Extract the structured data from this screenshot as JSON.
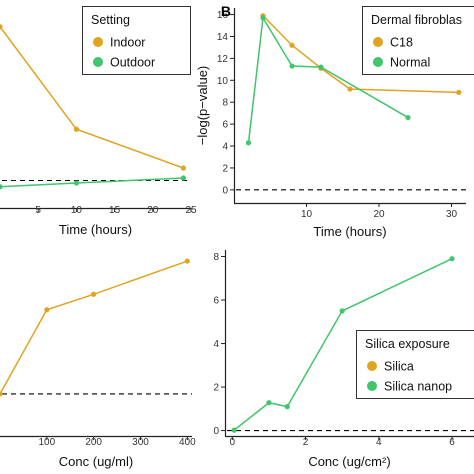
{
  "colors": {
    "orange": "#E0A420",
    "green": "#3FC56B",
    "axis": "#222222",
    "dashed": "#000000"
  },
  "chart_data": [
    {
      "id": "A",
      "type": "line",
      "panel_label": "",
      "title": "",
      "xlabel": "Time (hours)",
      "ylabel": "",
      "xlim": [
        0,
        25
      ],
      "ylim": [
        0,
        16
      ],
      "xticks": [
        5,
        10,
        15,
        20,
        25
      ],
      "xtick_labels": [
        "5",
        "10",
        "15",
        "20",
        "25"
      ],
      "yticks": [],
      "reference_y": 2.2,
      "legend": {
        "title": "Setting",
        "position": "top-right"
      },
      "series": [
        {
          "name": "Indoor",
          "color": "#E0A420",
          "x": [
            0,
            10,
            24
          ],
          "y": [
            14.5,
            6.3,
            3.2
          ]
        },
        {
          "name": "Outdoor",
          "color": "#3FC56B",
          "x": [
            0,
            10,
            24
          ],
          "y": [
            1.7,
            2.0,
            2.4
          ]
        }
      ]
    },
    {
      "id": "B",
      "type": "line",
      "panel_label": "B",
      "title": "",
      "xlabel": "Time (hours)",
      "ylabel": "−log(p−value)",
      "xlim": [
        0,
        32
      ],
      "ylim": [
        -1.2,
        16.6
      ],
      "xticks": [
        10,
        20,
        30
      ],
      "xtick_labels": [
        "10",
        "20",
        "30"
      ],
      "yticks": [
        0,
        2,
        4,
        6,
        8,
        10,
        12,
        14,
        16
      ],
      "ytick_labels": [
        "0",
        "2",
        "4",
        "6",
        "8",
        "10",
        "12",
        "14",
        "16"
      ],
      "reference_y": 0,
      "legend": {
        "title": "Dermal fibroblas",
        "position": "top-right"
      },
      "series": [
        {
          "name": "C18",
          "color": "#E0A420",
          "x": [
            4,
            8,
            12,
            16,
            31
          ],
          "y": [
            15.9,
            13.2,
            11.1,
            9.2,
            8.9
          ]
        },
        {
          "name": "Normal",
          "color": "#3FC56B",
          "x": [
            2,
            4,
            8,
            12,
            24
          ],
          "y": [
            4.3,
            15.7,
            11.3,
            11.2,
            6.6
          ]
        }
      ]
    },
    {
      "id": "C",
      "type": "line",
      "panel_label": "",
      "title": "",
      "xlabel": "Conc (ug/ml)",
      "ylabel": "",
      "xlim": [
        0,
        410
      ],
      "ylim": [
        0,
        8.4
      ],
      "xticks": [
        100,
        200,
        300,
        400
      ],
      "xtick_labels": [
        "100",
        "200",
        "300",
        "400"
      ],
      "yticks": [],
      "reference_y": 1.9,
      "legend": null,
      "series": [
        {
          "name": "",
          "color": "#E0A420",
          "x": [
            0,
            100,
            200,
            400
          ],
          "y": [
            1.9,
            5.7,
            6.4,
            7.9
          ]
        }
      ]
    },
    {
      "id": "D",
      "type": "line",
      "panel_label": "",
      "title": "",
      "xlabel": "Conc (ug/cm²)",
      "ylabel": "",
      "xlim": [
        -0.2,
        6.6
      ],
      "ylim": [
        -0.25,
        8.3
      ],
      "xticks": [
        0,
        2,
        4,
        6
      ],
      "xtick_labels": [
        "0",
        "2",
        "4",
        "6"
      ],
      "yticks": [
        0,
        2,
        4,
        6,
        8
      ],
      "ytick_labels": [
        "0",
        "2",
        "4",
        "6",
        "8"
      ],
      "reference_y": 0,
      "legend": {
        "title": "Silica exposure",
        "position": "bottom-right"
      },
      "series": [
        {
          "name": "Silica",
          "color": "#E0A420",
          "x": [],
          "y": []
        },
        {
          "name": "Silica nanop",
          "color": "#3FC56B",
          "x": [
            0.05,
            1,
            1.5,
            3,
            6
          ],
          "y": [
            0.02,
            1.28,
            1.1,
            5.5,
            7.9
          ]
        }
      ]
    }
  ]
}
